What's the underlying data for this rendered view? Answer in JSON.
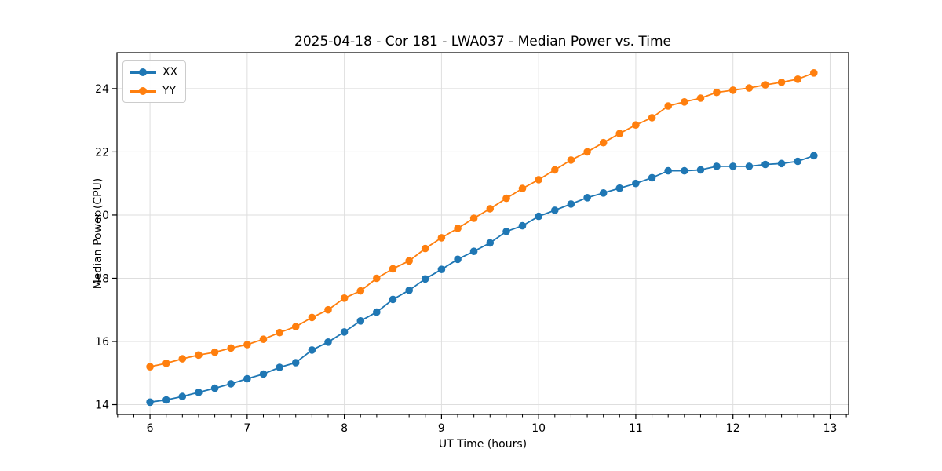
{
  "figure": {
    "background": "#ffffff"
  },
  "chart_data": {
    "type": "line",
    "title": "2025-04-18 - Cor 181 - LWA037 - Median Power vs. Time",
    "xlabel": "UT Time (hours)",
    "ylabel": "Median Power (CPU)",
    "x": [
      6.0,
      6.167,
      6.333,
      6.5,
      6.667,
      6.833,
      7.0,
      7.167,
      7.333,
      7.5,
      7.667,
      7.833,
      8.0,
      8.167,
      8.333,
      8.5,
      8.667,
      8.833,
      9.0,
      9.167,
      9.333,
      9.5,
      9.667,
      9.833,
      10.0,
      10.167,
      10.333,
      10.5,
      10.667,
      10.833,
      11.0,
      11.167,
      11.333,
      11.5,
      11.667,
      11.833,
      12.0,
      12.167,
      12.333,
      12.5,
      12.667,
      12.833
    ],
    "series": [
      {
        "name": "XX",
        "color": "#1f77b4",
        "values": [
          14.08,
          14.15,
          14.26,
          14.39,
          14.52,
          14.66,
          14.82,
          14.97,
          15.18,
          15.33,
          15.73,
          15.98,
          16.3,
          16.65,
          16.93,
          17.33,
          17.62,
          17.98,
          18.28,
          18.6,
          18.85,
          19.12,
          19.48,
          19.66,
          19.96,
          20.15,
          20.35,
          20.55,
          20.7,
          20.85,
          21.0,
          21.18,
          21.4,
          21.4,
          21.43,
          21.54,
          21.54,
          21.54,
          21.6,
          21.63,
          21.7,
          21.88
        ]
      },
      {
        "name": "YY",
        "color": "#ff7f0e",
        "values": [
          15.2,
          15.31,
          15.45,
          15.57,
          15.66,
          15.79,
          15.9,
          16.07,
          16.28,
          16.47,
          16.76,
          17.0,
          17.37,
          17.6,
          18.0,
          18.3,
          18.55,
          18.94,
          19.28,
          19.58,
          19.9,
          20.2,
          20.53,
          20.84,
          21.12,
          21.43,
          21.74,
          22.0,
          22.29,
          22.58,
          22.85,
          23.08,
          23.45,
          23.58,
          23.7,
          23.88,
          23.95,
          24.02,
          24.12,
          24.2,
          24.3,
          24.5
        ]
      }
    ],
    "xlim": [
      5.66,
      13.19
    ],
    "ylim": [
      13.69,
      25.14
    ],
    "xticks": [
      6,
      7,
      8,
      9,
      10,
      11,
      12,
      13
    ],
    "yticks": [
      14,
      16,
      18,
      20,
      22,
      24
    ],
    "x_minor_step": 0.1667,
    "grid": true,
    "legend_position": "upper left",
    "marker": "circle",
    "grid_color": "#dedede",
    "axis_color": "#000000",
    "line_width": 1.8,
    "marker_radius": 4.8
  }
}
